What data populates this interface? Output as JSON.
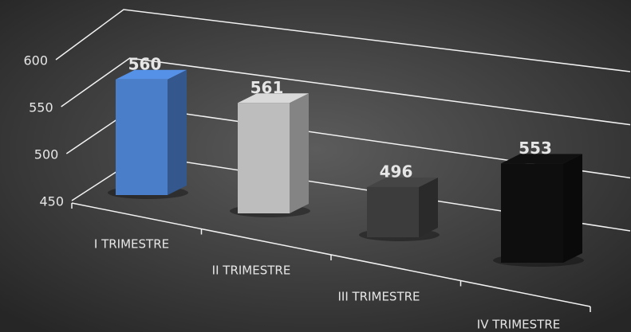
{
  "chart_data": {
    "type": "bar",
    "categories": [
      "I TRIMESTRE",
      "II TRIMESTRE",
      "III TRIMESTRE",
      "IV TRIMESTRE"
    ],
    "values": [
      560,
      561,
      496,
      553
    ],
    "colors": [
      "#4a7ec9",
      "#bdbdbd",
      "#3c3c3c",
      "#0e0e0e"
    ],
    "ylim": [
      450,
      600
    ],
    "yticks": [
      450,
      500,
      550,
      600
    ],
    "grid": true
  }
}
